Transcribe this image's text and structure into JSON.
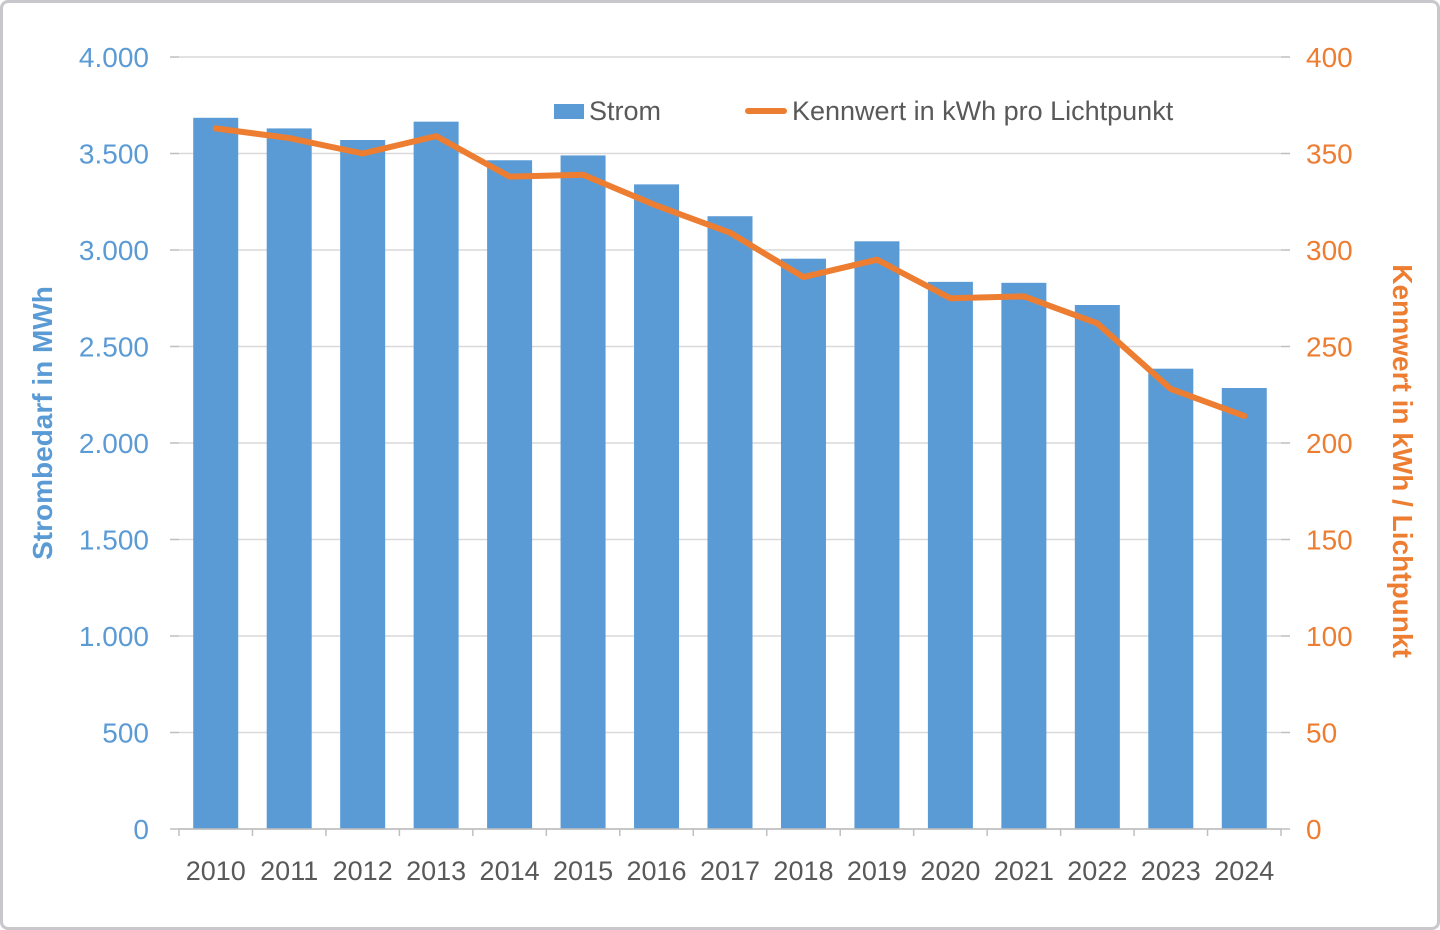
{
  "chart_data": {
    "type": "bar+line",
    "categories": [
      "2010",
      "2011",
      "2012",
      "2013",
      "2014",
      "2015",
      "2016",
      "2017",
      "2018",
      "2019",
      "2020",
      "2021",
      "2022",
      "2023",
      "2024"
    ],
    "series": [
      {
        "name": "Strom",
        "type": "bar",
        "axis": "left",
        "color": "#5B9BD5",
        "values": [
          3685,
          3630,
          3570,
          3665,
          3465,
          3490,
          3340,
          3175,
          2955,
          3045,
          2835,
          2830,
          2715,
          2385,
          2285
        ]
      },
      {
        "name": "Kennwert in kWh pro Lichtpunkt",
        "type": "line",
        "axis": "right",
        "color": "#ED7D31",
        "values": [
          363,
          358,
          350,
          359,
          338,
          339,
          323,
          309,
          286,
          295,
          275,
          276,
          262,
          228,
          214
        ]
      }
    ],
    "left_axis": {
      "title": "Strombedarf in MWh",
      "min": 0,
      "max": 4000,
      "step": 500,
      "tick_labels": [
        "0",
        "500",
        "1.000",
        "1.500",
        "2.000",
        "2.500",
        "3.000",
        "3.500",
        "4.000"
      ],
      "color": "#5B9BD5"
    },
    "right_axis": {
      "title": "Kennwert in kWh / Lichtpunkt",
      "min": 0,
      "max": 400,
      "step": 50,
      "tick_labels": [
        "0",
        "50",
        "100",
        "150",
        "200",
        "250",
        "300",
        "350",
        "400"
      ],
      "color": "#ED7D31"
    },
    "x_axis": {
      "label_color": "#595959"
    },
    "legend": {
      "position": "top",
      "items": [
        {
          "label": "Strom",
          "marker": "square",
          "color": "#5B9BD5"
        },
        {
          "label": "Kennwert in kWh pro Lichtpunkt",
          "marker": "line",
          "color": "#ED7D31"
        }
      ]
    },
    "grid": true,
    "gridline_color": "#D9D9D9",
    "axisline_color": "#BFBFBF"
  }
}
